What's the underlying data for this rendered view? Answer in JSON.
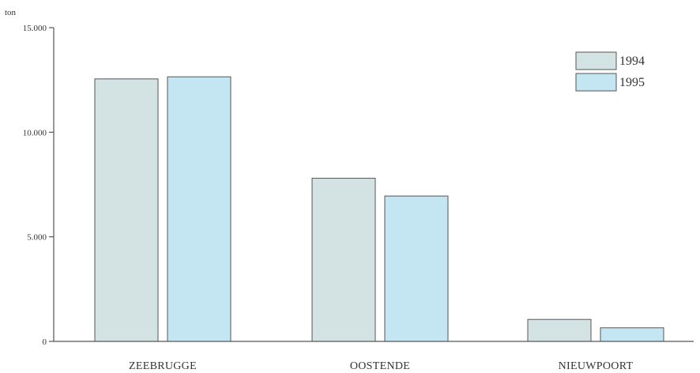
{
  "chart_data": {
    "type": "bar",
    "title": "",
    "xlabel": "",
    "ylabel": "ton",
    "ylim": [
      0,
      15000
    ],
    "yticks": [
      0,
      5000,
      10000,
      15000
    ],
    "ytick_labels": [
      "0",
      "5.000",
      "10.000",
      "15.000"
    ],
    "categories": [
      "ZEEBRUGGE",
      "OOSTENDE",
      "NIEUWPOORT"
    ],
    "series": [
      {
        "name": "1994",
        "color": "#d3e2e3",
        "values": [
          12550,
          7800,
          1050
        ]
      },
      {
        "name": "1995",
        "color": "#c3e6f2",
        "values": [
          12650,
          6950,
          650
        ]
      }
    ],
    "grid": false,
    "legend": "top-right"
  }
}
